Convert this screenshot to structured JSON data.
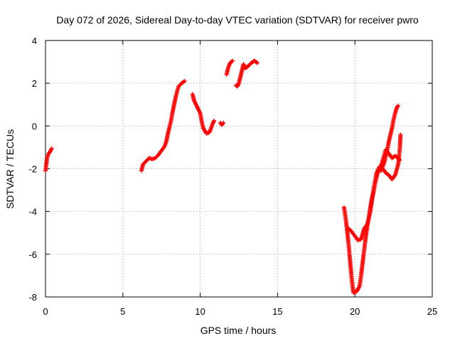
{
  "chart_data": {
    "type": "scatter",
    "title": "Day 072 of 2026, Sidereal Day-to-day VTEC variation (SDTVAR) for receiver pwro",
    "xlabel": "GPS time / hours",
    "ylabel": "SDTVAR / TECUs",
    "xlim": [
      0,
      25
    ],
    "ylim": [
      -8,
      4
    ],
    "xticks": [
      0,
      5,
      10,
      15,
      20,
      25
    ],
    "yticks": [
      -8,
      -6,
      -4,
      -2,
      0,
      2,
      4
    ],
    "xtick_labels": [
      "0",
      "5",
      "10",
      "15",
      "20",
      "25"
    ],
    "ytick_labels": [
      "-8",
      "-6",
      "-4",
      "-2",
      "0",
      "2",
      "4"
    ],
    "grid": true,
    "marker": "plus",
    "color": "#ff0000",
    "segments": [
      [
        [
          0.0,
          -2.1
        ],
        [
          0.05,
          -1.8
        ],
        [
          0.1,
          -1.5
        ],
        [
          0.2,
          -1.3
        ],
        [
          0.3,
          -1.2
        ],
        [
          0.4,
          -1.05
        ]
      ],
      [
        [
          6.2,
          -2.1
        ],
        [
          6.3,
          -1.8
        ],
        [
          6.5,
          -1.65
        ],
        [
          6.7,
          -1.5
        ],
        [
          6.9,
          -1.55
        ],
        [
          7.1,
          -1.5
        ],
        [
          7.3,
          -1.35
        ],
        [
          7.5,
          -1.15
        ],
        [
          7.7,
          -0.95
        ],
        [
          7.8,
          -0.75
        ],
        [
          7.9,
          -0.4
        ],
        [
          8.0,
          -0.1
        ],
        [
          8.1,
          0.2
        ],
        [
          8.2,
          0.6
        ],
        [
          8.3,
          0.95
        ],
        [
          8.4,
          1.3
        ],
        [
          8.5,
          1.6
        ],
        [
          8.6,
          1.85
        ],
        [
          8.8,
          2.0
        ],
        [
          9.0,
          2.1
        ]
      ],
      [
        [
          9.5,
          1.5
        ],
        [
          9.6,
          1.2
        ],
        [
          9.8,
          0.9
        ],
        [
          10.0,
          0.6
        ],
        [
          10.1,
          0.2
        ],
        [
          10.2,
          -0.1
        ],
        [
          10.4,
          -0.35
        ],
        [
          10.6,
          -0.3
        ],
        [
          10.7,
          -0.1
        ],
        [
          10.8,
          0.1
        ],
        [
          10.9,
          0.25
        ]
      ],
      [
        [
          11.3,
          0.15
        ],
        [
          11.4,
          0.05
        ],
        [
          11.5,
          0.15
        ]
      ],
      [
        [
          11.7,
          2.4
        ],
        [
          11.8,
          2.7
        ],
        [
          11.9,
          2.9
        ],
        [
          12.0,
          3.0
        ],
        [
          12.1,
          3.05
        ]
      ],
      [
        [
          12.3,
          1.9
        ],
        [
          12.4,
          1.85
        ],
        [
          12.5,
          2.0
        ],
        [
          12.6,
          2.3
        ],
        [
          12.7,
          2.6
        ],
        [
          12.8,
          2.9
        ],
        [
          12.9,
          2.7
        ],
        [
          13.1,
          2.8
        ],
        [
          13.3,
          2.95
        ],
        [
          13.5,
          3.05
        ],
        [
          13.7,
          2.95
        ]
      ],
      [
        [
          19.3,
          -3.8
        ],
        [
          19.4,
          -4.3
        ],
        [
          19.5,
          -4.9
        ],
        [
          19.6,
          -5.6
        ],
        [
          19.7,
          -6.4
        ],
        [
          19.8,
          -7.2
        ],
        [
          19.9,
          -7.8
        ],
        [
          20.1,
          -7.75
        ],
        [
          20.3,
          -7.5
        ],
        [
          20.4,
          -7.0
        ],
        [
          20.5,
          -6.4
        ],
        [
          20.6,
          -5.8
        ],
        [
          20.7,
          -5.2
        ],
        [
          20.8,
          -4.7
        ],
        [
          20.9,
          -4.3
        ],
        [
          21.0,
          -3.8
        ],
        [
          21.1,
          -3.4
        ],
        [
          21.2,
          -3.1
        ],
        [
          21.3,
          -2.7
        ],
        [
          21.4,
          -2.4
        ],
        [
          21.5,
          -2.1
        ],
        [
          21.6,
          -1.9
        ],
        [
          21.7,
          -2.1
        ],
        [
          21.8,
          -1.9
        ],
        [
          21.9,
          -1.7
        ],
        [
          22.0,
          -1.4
        ],
        [
          22.1,
          -1.1
        ],
        [
          22.2,
          -0.7
        ],
        [
          22.3,
          -0.4
        ],
        [
          22.4,
          -0.1
        ],
        [
          22.5,
          0.3
        ],
        [
          22.6,
          0.6
        ],
        [
          22.7,
          0.85
        ],
        [
          22.8,
          0.95
        ]
      ],
      [
        [
          19.6,
          -4.8
        ],
        [
          19.8,
          -4.95
        ],
        [
          20.0,
          -5.15
        ],
        [
          20.2,
          -5.35
        ],
        [
          20.4,
          -5.3
        ],
        [
          20.5,
          -5.05
        ],
        [
          20.6,
          -4.8
        ],
        [
          20.8,
          -4.6
        ],
        [
          21.0,
          -4.0
        ],
        [
          21.2,
          -3.0
        ],
        [
          21.4,
          -2.2
        ],
        [
          21.6,
          -1.9
        ],
        [
          21.8,
          -2.0
        ],
        [
          22.0,
          -2.2
        ],
        [
          22.2,
          -2.3
        ],
        [
          22.4,
          -2.5
        ],
        [
          22.6,
          -2.3
        ],
        [
          22.8,
          -1.8
        ],
        [
          22.9,
          -1.1
        ],
        [
          22.95,
          -0.4
        ]
      ],
      [
        [
          21.6,
          -2.1
        ],
        [
          21.8,
          -1.6
        ],
        [
          22.0,
          -1.1
        ],
        [
          22.2,
          -1.3
        ],
        [
          22.4,
          -1.5
        ],
        [
          22.6,
          -1.4
        ],
        [
          22.8,
          -1.5
        ],
        [
          22.9,
          -1.6
        ]
      ]
    ]
  }
}
